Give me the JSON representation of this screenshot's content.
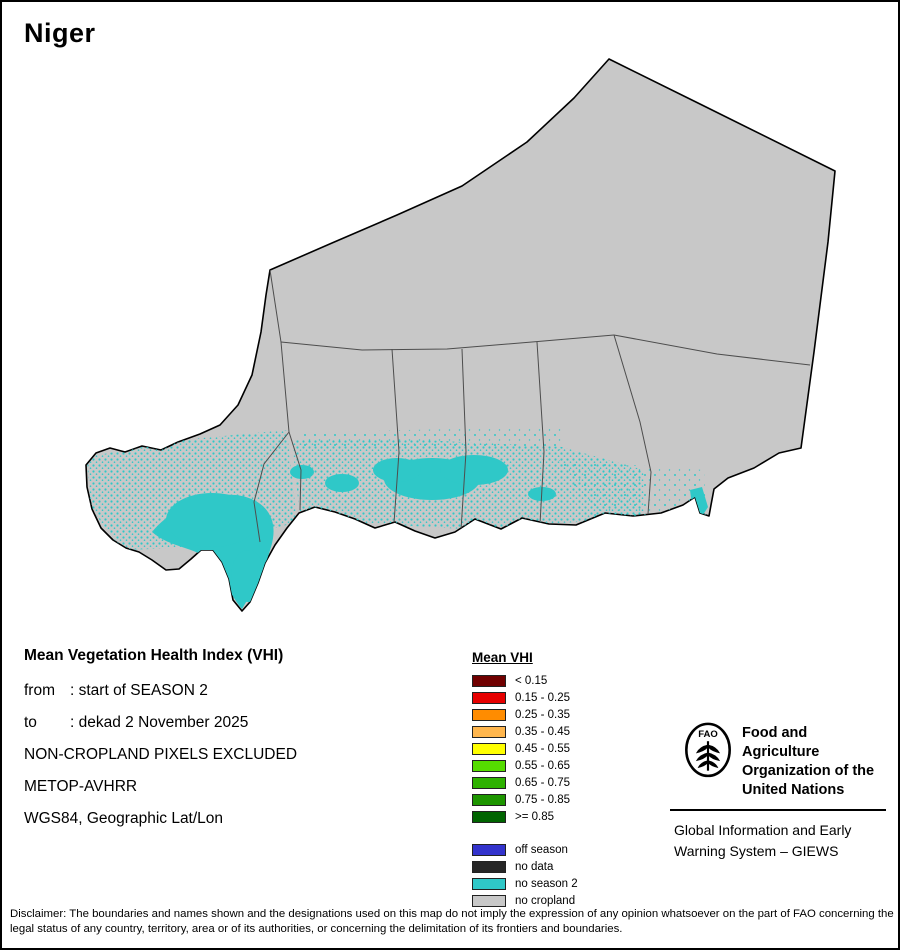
{
  "page": {
    "title": "Niger",
    "background": "#ffffff",
    "border_color": "#000000"
  },
  "map": {
    "country": "Niger",
    "land_color": "#c8c8c8",
    "outline_color": "#000000",
    "admin_line_color": "#4d4d4d",
    "season2_color": "#2fc8c8"
  },
  "info": {
    "heading": "Mean Vegetation Health Index (VHI)",
    "from_label": "from",
    "from_value": ": start of SEASON 2",
    "to_label": "to",
    "to_value": ": dekad 2 November 2025",
    "line_noncrop": "NON-CROPLAND PIXELS EXCLUDED",
    "line_sensor": "METOP-AVHRR",
    "line_projection": "WGS84, Geographic Lat/Lon"
  },
  "legend": {
    "title": "Mean VHI",
    "vhi_items": [
      {
        "label": "< 0.15",
        "color": "#700000"
      },
      {
        "label": "0.15 - 0.25",
        "color": "#e60000"
      },
      {
        "label": "0.25 - 0.35",
        "color": "#ff8c00"
      },
      {
        "label": "0.35 - 0.45",
        "color": "#ffb64d"
      },
      {
        "label": "0.45 - 0.55",
        "color": "#ffff00"
      },
      {
        "label": "0.55 - 0.65",
        "color": "#55dd00"
      },
      {
        "label": "0.65 - 0.75",
        "color": "#2eb200"
      },
      {
        "label": "0.75 - 0.85",
        "color": "#1e9600"
      },
      {
        "label": ">= 0.85",
        "color": "#006400"
      }
    ],
    "status_items": [
      {
        "label": "off season",
        "color": "#3333cc"
      },
      {
        "label": "no data",
        "color": "#262626"
      },
      {
        "label": "no season 2",
        "color": "#2fc8c8"
      },
      {
        "label": "no cropland",
        "color": "#c8c8c8"
      }
    ]
  },
  "fao": {
    "logo_text": "FAO",
    "org_name": "Food and Agriculture\nOrganization of the\nUnited Nations",
    "giews_name": "Global Information and Early\nWarning System – GIEWS"
  },
  "disclaimer": "Disclaimer: The boundaries and names shown and the designations used on this map do not imply the expression of any opinion whatsoever on the part of FAO concerning the legal status of any country, territory, area or of its authorities, or concerning the delimitation of its frontiers and boundaries."
}
